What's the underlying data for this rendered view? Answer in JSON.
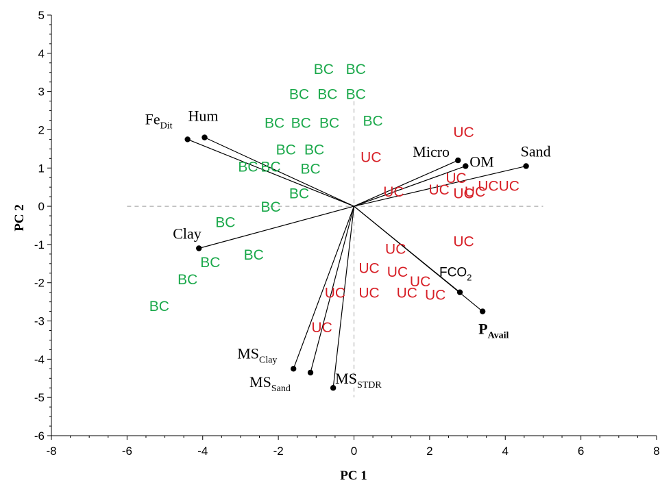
{
  "chart_data": {
    "type": "scatter",
    "title": "",
    "xlabel": "PC 1",
    "ylabel": "PC 2",
    "xlim": [
      -8,
      8
    ],
    "ylim": [
      -6,
      5
    ],
    "xticks": [
      -8,
      -6,
      -4,
      -2,
      0,
      2,
      4,
      6,
      8
    ],
    "yticks": [
      -6,
      -5,
      -4,
      -3,
      -2,
      -1,
      0,
      1,
      2,
      3,
      4,
      5
    ],
    "grid": false,
    "zero_lines": "dashed",
    "colors": {
      "BC": "#1aa84a",
      "UC": "#d71f26",
      "vector": "#000000"
    },
    "loadings": [
      {
        "name": "Fe",
        "sub": "Dit",
        "x": -4.4,
        "y": 1.75
      },
      {
        "name": "Hum",
        "sub": "",
        "x": -3.95,
        "y": 1.8
      },
      {
        "name": "Clay",
        "sub": "",
        "x": -4.1,
        "y": -1.1
      },
      {
        "name": "Micro",
        "sub": "",
        "x": 2.75,
        "y": 1.2
      },
      {
        "name": "OM",
        "sub": "",
        "x": 2.95,
        "y": 1.05
      },
      {
        "name": "Sand",
        "sub": "",
        "x": 4.55,
        "y": 1.05
      },
      {
        "name": "FCO",
        "sub": "2",
        "x": 2.8,
        "y": -2.25
      },
      {
        "name": "P",
        "sub": "Avail",
        "x": 3.4,
        "y": -2.75
      },
      {
        "name": "MS",
        "sub": "Clay",
        "x": -1.6,
        "y": -4.25
      },
      {
        "name": "MS",
        "sub": "Sand",
        "x": -1.15,
        "y": -4.35
      },
      {
        "name": "MS",
        "sub": "STDR",
        "x": -0.55,
        "y": -4.75
      }
    ],
    "series": [
      {
        "name": "BC",
        "points": [
          [
            -0.8,
            3.6
          ],
          [
            0.05,
            3.6
          ],
          [
            -1.45,
            2.95
          ],
          [
            -0.7,
            2.95
          ],
          [
            0.05,
            2.95
          ],
          [
            -2.1,
            2.2
          ],
          [
            -1.4,
            2.2
          ],
          [
            -0.65,
            2.2
          ],
          [
            0.5,
            2.25
          ],
          [
            -1.8,
            1.5
          ],
          [
            -1.05,
            1.5
          ],
          [
            -2.8,
            1.05
          ],
          [
            -2.2,
            1.05
          ],
          [
            -1.15,
            1.0
          ],
          [
            -1.45,
            0.35
          ],
          [
            -2.2,
            0.0
          ],
          [
            -3.4,
            -0.4
          ],
          [
            -2.65,
            -1.25
          ],
          [
            -3.8,
            -1.45
          ],
          [
            -4.4,
            -1.9
          ],
          [
            -5.15,
            -2.6
          ]
        ]
      },
      {
        "name": "UC",
        "points": [
          [
            2.9,
            1.95
          ],
          [
            0.45,
            1.3
          ],
          [
            2.7,
            0.75
          ],
          [
            3.2,
            0.4
          ],
          [
            3.55,
            0.55
          ],
          [
            4.1,
            0.55
          ],
          [
            1.05,
            0.4
          ],
          [
            2.25,
            0.45
          ],
          [
            2.9,
            0.35
          ],
          [
            2.9,
            -0.9
          ],
          [
            1.1,
            -1.1
          ],
          [
            0.4,
            -1.6
          ],
          [
            1.15,
            -1.7
          ],
          [
            1.75,
            -1.95
          ],
          [
            -0.5,
            -2.25
          ],
          [
            0.4,
            -2.25
          ],
          [
            1.4,
            -2.25
          ],
          [
            2.15,
            -2.3
          ],
          [
            -0.85,
            -3.15
          ]
        ]
      }
    ]
  }
}
